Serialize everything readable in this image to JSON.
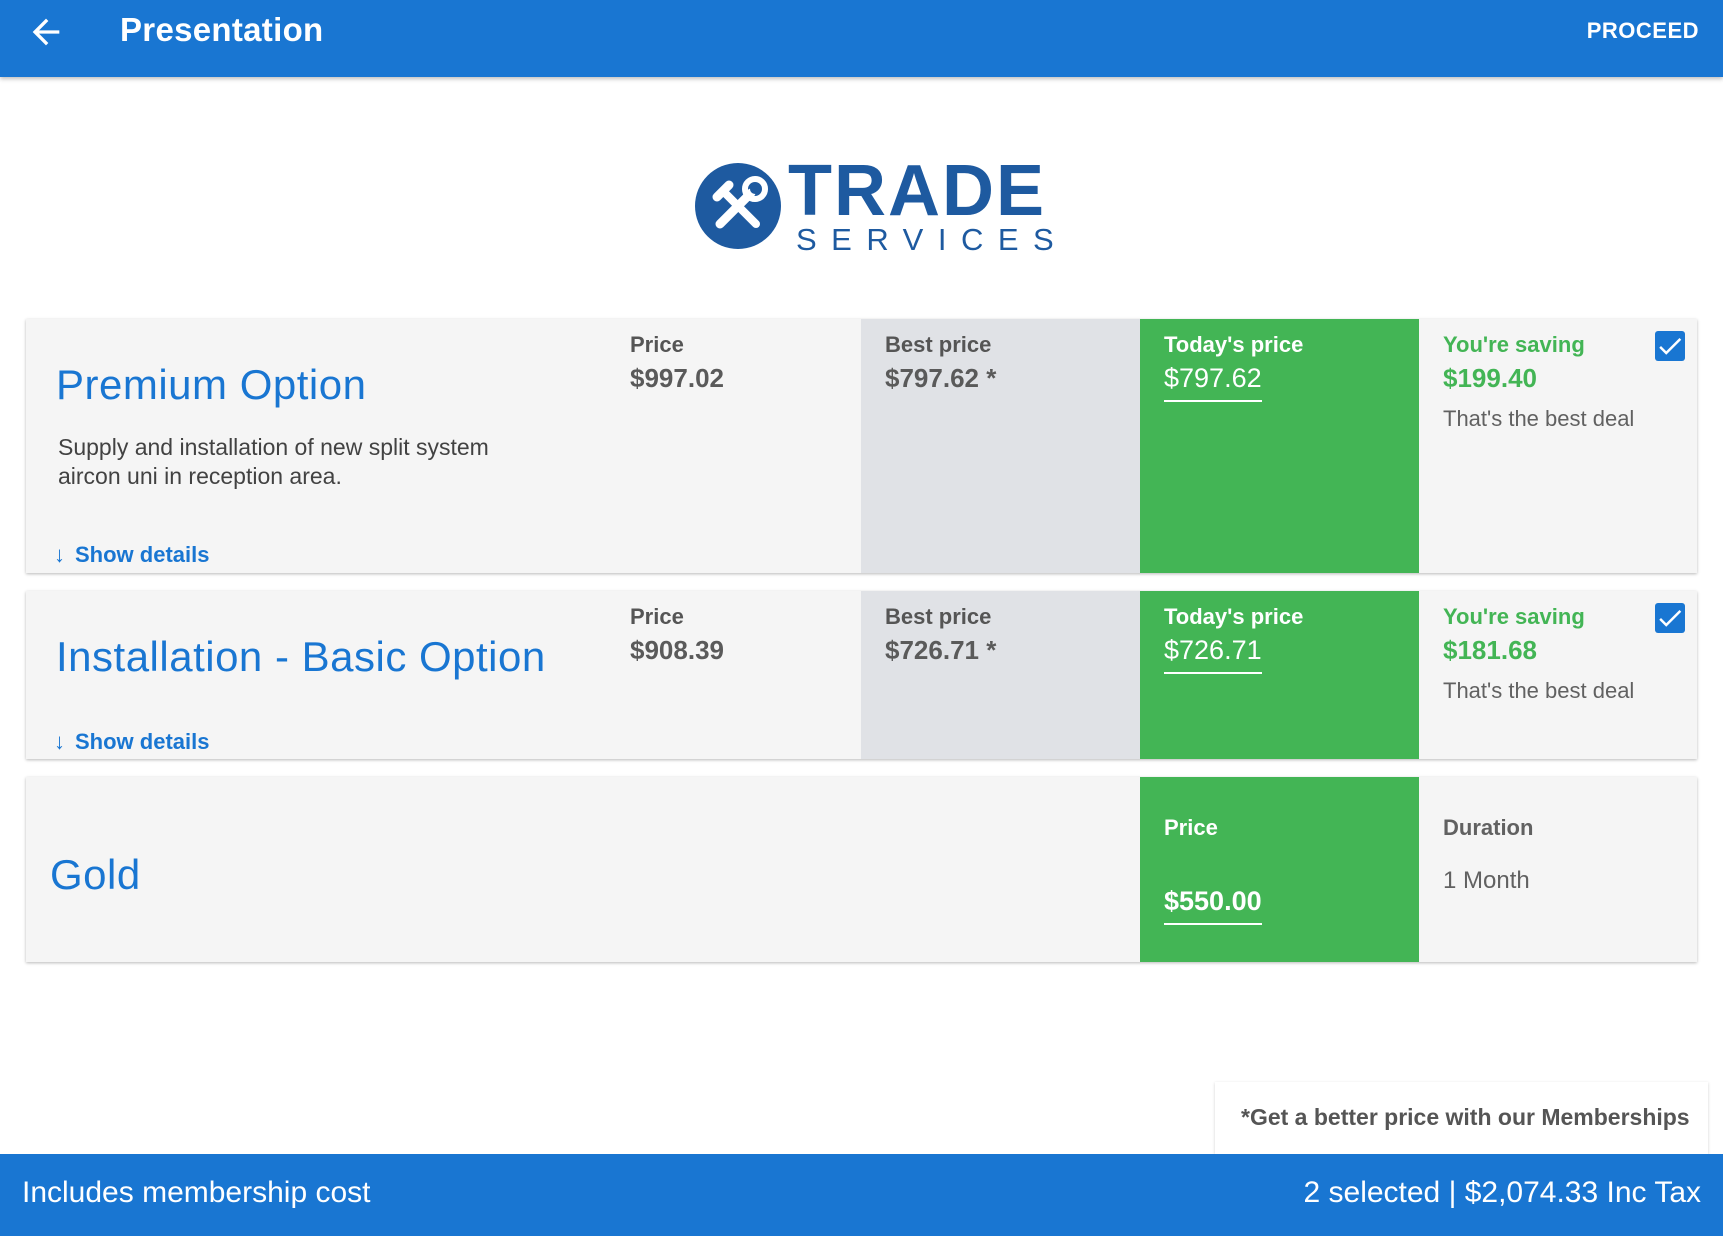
{
  "appbar": {
    "title": "Presentation",
    "proceed_label": "PROCEED",
    "back_icon": "arrow-left-icon"
  },
  "logo": {
    "word": "TRADE",
    "sub": "SERVICES",
    "icon": "tools-wrench-icon",
    "color": "#1e5aa0"
  },
  "options": [
    {
      "title": "Premium Option",
      "description": "Supply and installation of new split system aircon uni in reception area.",
      "show_details": "Show details",
      "price_label": "Price",
      "price": "$997.02",
      "best_label": "Best price",
      "best_price": "$797.62 *",
      "today_label": "Today's price",
      "today_price": "$797.62",
      "saving_label": "You're saving",
      "saving": "$199.40",
      "deal": "That's the best deal",
      "checked": true
    },
    {
      "title": "Installation - Basic Option",
      "description": "",
      "show_details": "Show details",
      "price_label": "Price",
      "price": "$908.39",
      "best_label": "Best price",
      "best_price": "$726.71 *",
      "today_label": "Today's price",
      "today_price": "$726.71",
      "saving_label": "You're saving",
      "saving": "$181.68",
      "deal": "That's the best deal",
      "checked": true
    }
  ],
  "membership": {
    "title": "Gold",
    "price_label": "Price",
    "price": "$550.00",
    "duration_label": "Duration",
    "duration": "1 Month"
  },
  "promo": "*Get a better price with our Memberships",
  "footer": {
    "left": "Includes membership cost",
    "right": "2 selected | $2,074.33 Inc Tax"
  },
  "colors": {
    "primary": "#1976d2",
    "green": "#43b555",
    "card_bg": "#f5f5f5",
    "best_bg": "#e0e2e6"
  }
}
